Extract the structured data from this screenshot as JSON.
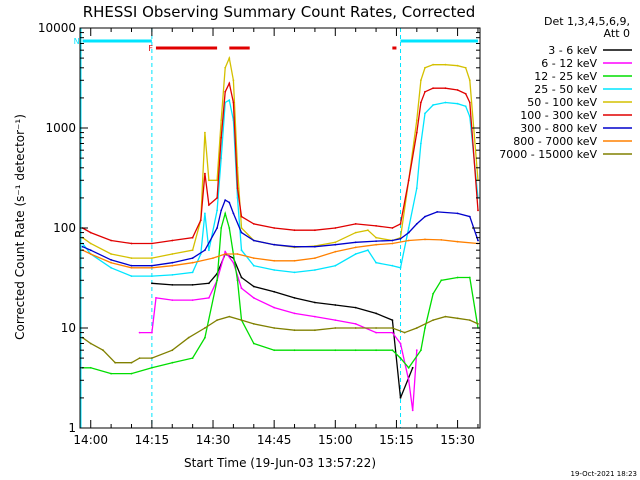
{
  "chart_data": {
    "type": "line",
    "title": "RHESSI Observing Summary Count Rates, Corrected",
    "xlabel": "Start Time (19-Jun-03 13:57:22)",
    "ylabel": "Corrected Count Rate (s⁻¹ detector⁻¹)",
    "yscale": "log",
    "ylim": [
      1,
      10000
    ],
    "xlim": [
      "13:57:22",
      "15:35:30"
    ],
    "x_ticks": [
      "14:00",
      "14:15",
      "14:30",
      "14:45",
      "15:00",
      "15:15",
      "15:30"
    ],
    "y_ticks": [
      "1",
      "10",
      "100",
      "1000",
      "10000"
    ],
    "legend_position": "right",
    "legend_header": [
      "Det 1,3,4,5,6,9,",
      "Att 0"
    ],
    "timestamp": "19-Oct-2021 18:23",
    "flags": [
      {
        "label": "N",
        "color": "#00e5ff",
        "ranges": [
          [
            "13:58",
            "14:15"
          ],
          [
            "15:16",
            "15:35"
          ]
        ]
      },
      {
        "label": "F",
        "color": "#e00000",
        "ranges": [
          [
            "14:16",
            "14:31"
          ],
          [
            "14:34",
            "14:39"
          ],
          [
            "15:14",
            "15:15"
          ]
        ]
      }
    ],
    "night_boundaries": [
      "14:15",
      "15:16"
    ],
    "series": [
      {
        "name": "3 - 6 keV",
        "color": "#000000",
        "points": [
          [
            "14:15",
            28
          ],
          [
            "14:20",
            27
          ],
          [
            "14:25",
            27
          ],
          [
            "14:29",
            28
          ],
          [
            "14:31",
            35
          ],
          [
            "14:33",
            55
          ],
          [
            "14:35",
            50
          ],
          [
            "14:37",
            32
          ],
          [
            "14:40",
            26
          ],
          [
            "14:45",
            23
          ],
          [
            "14:50",
            20
          ],
          [
            "14:55",
            18
          ],
          [
            "15:00",
            17
          ],
          [
            "15:05",
            16
          ],
          [
            "15:10",
            14
          ],
          [
            "15:14",
            12
          ],
          [
            "15:16",
            2
          ],
          [
            "15:19",
            4
          ]
        ]
      },
      {
        "name": "6 - 12 keV",
        "color": "#ff00ff",
        "points": [
          [
            "14:12",
            9
          ],
          [
            "14:15",
            9
          ],
          [
            "14:16",
            20
          ],
          [
            "14:20",
            19
          ],
          [
            "14:25",
            19
          ],
          [
            "14:29",
            20
          ],
          [
            "14:31",
            30
          ],
          [
            "14:33",
            58
          ],
          [
            "14:35",
            45
          ],
          [
            "14:37",
            25
          ],
          [
            "14:40",
            20
          ],
          [
            "14:45",
            16
          ],
          [
            "14:50",
            14
          ],
          [
            "14:55",
            13
          ],
          [
            "15:00",
            12
          ],
          [
            "15:05",
            11
          ],
          [
            "15:10",
            9
          ],
          [
            "15:14",
            9
          ],
          [
            "15:16",
            7
          ],
          [
            "15:18",
            3
          ],
          [
            "15:19",
            1.5
          ],
          [
            "15:20",
            6
          ]
        ]
      },
      {
        "name": "12 - 25 keV",
        "color": "#00dd00",
        "points": [
          [
            "13:58",
            4
          ],
          [
            "14:00",
            4
          ],
          [
            "14:05",
            3.5
          ],
          [
            "14:10",
            3.5
          ],
          [
            "14:15",
            4
          ],
          [
            "14:20",
            4.5
          ],
          [
            "14:25",
            5
          ],
          [
            "14:28",
            8
          ],
          [
            "14:31",
            30
          ],
          [
            "14:32",
            100
          ],
          [
            "14:33",
            140
          ],
          [
            "14:34",
            100
          ],
          [
            "14:36",
            30
          ],
          [
            "14:37",
            12
          ],
          [
            "14:40",
            7
          ],
          [
            "14:45",
            6
          ],
          [
            "14:50",
            6
          ],
          [
            "15:00",
            6
          ],
          [
            "15:05",
            6
          ],
          [
            "15:10",
            6
          ],
          [
            "15:14",
            6
          ],
          [
            "15:16",
            5
          ],
          [
            "15:18",
            4
          ],
          [
            "15:21",
            6
          ],
          [
            "15:22",
            10
          ],
          [
            "15:24",
            22
          ],
          [
            "15:26",
            30
          ],
          [
            "15:30",
            32
          ],
          [
            "15:33",
            32
          ],
          [
            "15:35",
            10
          ]
        ]
      },
      {
        "name": "25 - 50 keV",
        "color": "#00e5ff",
        "points": [
          [
            "13:58",
            70
          ],
          [
            "14:00",
            55
          ],
          [
            "14:05",
            40
          ],
          [
            "14:10",
            33
          ],
          [
            "14:15",
            33
          ],
          [
            "14:20",
            34
          ],
          [
            "14:25",
            36
          ],
          [
            "14:27",
            55
          ],
          [
            "14:28",
            140
          ],
          [
            "14:29",
            60
          ],
          [
            "14:31",
            150
          ],
          [
            "14:32",
            500
          ],
          [
            "14:33",
            1800
          ],
          [
            "14:34",
            1900
          ],
          [
            "14:35",
            1200
          ],
          [
            "14:36",
            200
          ],
          [
            "14:37",
            60
          ],
          [
            "14:40",
            42
          ],
          [
            "14:45",
            38
          ],
          [
            "14:50",
            36
          ],
          [
            "14:55",
            38
          ],
          [
            "15:00",
            42
          ],
          [
            "15:05",
            55
          ],
          [
            "15:08",
            60
          ],
          [
            "15:10",
            45
          ],
          [
            "15:14",
            42
          ],
          [
            "15:16",
            40
          ],
          [
            "15:18",
            100
          ],
          [
            "15:20",
            250
          ],
          [
            "15:21",
            700
          ],
          [
            "15:22",
            1400
          ],
          [
            "15:24",
            1700
          ],
          [
            "15:27",
            1800
          ],
          [
            "15:30",
            1750
          ],
          [
            "15:32",
            1650
          ],
          [
            "15:33",
            1300
          ],
          [
            "15:35",
            200
          ]
        ]
      },
      {
        "name": "50 - 100 keV",
        "color": "#d4c000",
        "points": [
          [
            "13:58",
            80
          ],
          [
            "14:00",
            70
          ],
          [
            "14:05",
            55
          ],
          [
            "14:10",
            50
          ],
          [
            "14:15",
            50
          ],
          [
            "14:20",
            55
          ],
          [
            "14:25",
            60
          ],
          [
            "14:27",
            120
          ],
          [
            "14:28",
            900
          ],
          [
            "14:29",
            300
          ],
          [
            "14:31",
            300
          ],
          [
            "14:32",
            1200
          ],
          [
            "14:33",
            4000
          ],
          [
            "14:34",
            5000
          ],
          [
            "14:35",
            3000
          ],
          [
            "14:36",
            400
          ],
          [
            "14:37",
            100
          ],
          [
            "14:40",
            75
          ],
          [
            "14:45",
            68
          ],
          [
            "14:50",
            64
          ],
          [
            "14:55",
            66
          ],
          [
            "15:00",
            72
          ],
          [
            "15:05",
            90
          ],
          [
            "15:08",
            95
          ],
          [
            "15:10",
            80
          ],
          [
            "15:14",
            75
          ],
          [
            "15:16",
            80
          ],
          [
            "15:18",
            300
          ],
          [
            "15:20",
            1200
          ],
          [
            "15:21",
            3000
          ],
          [
            "15:22",
            4000
          ],
          [
            "15:24",
            4300
          ],
          [
            "15:27",
            4300
          ],
          [
            "15:30",
            4200
          ],
          [
            "15:32",
            4000
          ],
          [
            "15:33",
            3000
          ],
          [
            "15:35",
            300
          ]
        ]
      },
      {
        "name": "100 - 300 keV",
        "color": "#e00000",
        "points": [
          [
            "13:58",
            100
          ],
          [
            "14:00",
            90
          ],
          [
            "14:05",
            75
          ],
          [
            "14:10",
            70
          ],
          [
            "14:15",
            70
          ],
          [
            "14:20",
            75
          ],
          [
            "14:25",
            80
          ],
          [
            "14:27",
            120
          ],
          [
            "14:28",
            350
          ],
          [
            "14:29",
            170
          ],
          [
            "14:31",
            200
          ],
          [
            "14:32",
            800
          ],
          [
            "14:33",
            2300
          ],
          [
            "14:34",
            2800
          ],
          [
            "14:35",
            1800
          ],
          [
            "14:36",
            250
          ],
          [
            "14:37",
            130
          ],
          [
            "14:40",
            110
          ],
          [
            "14:45",
            100
          ],
          [
            "14:50",
            95
          ],
          [
            "14:55",
            95
          ],
          [
            "15:00",
            100
          ],
          [
            "15:05",
            110
          ],
          [
            "15:10",
            105
          ],
          [
            "15:14",
            100
          ],
          [
            "15:16",
            110
          ],
          [
            "15:18",
            300
          ],
          [
            "15:20",
            900
          ],
          [
            "15:21",
            1800
          ],
          [
            "15:22",
            2300
          ],
          [
            "15:24",
            2500
          ],
          [
            "15:27",
            2500
          ],
          [
            "15:30",
            2400
          ],
          [
            "15:32",
            2200
          ],
          [
            "15:33",
            1800
          ],
          [
            "15:35",
            150
          ]
        ]
      },
      {
        "name": "300 - 800 keV",
        "color": "#0000cc",
        "points": [
          [
            "13:58",
            65
          ],
          [
            "14:00",
            60
          ],
          [
            "14:05",
            48
          ],
          [
            "14:10",
            42
          ],
          [
            "14:15",
            42
          ],
          [
            "14:20",
            45
          ],
          [
            "14:25",
            50
          ],
          [
            "14:28",
            60
          ],
          [
            "14:31",
            100
          ],
          [
            "14:32",
            150
          ],
          [
            "14:33",
            190
          ],
          [
            "14:34",
            180
          ],
          [
            "14:35",
            140
          ],
          [
            "14:37",
            90
          ],
          [
            "14:40",
            75
          ],
          [
            "14:45",
            68
          ],
          [
            "14:50",
            65
          ],
          [
            "14:55",
            65
          ],
          [
            "15:00",
            68
          ],
          [
            "15:05",
            72
          ],
          [
            "15:10",
            74
          ],
          [
            "15:14",
            75
          ],
          [
            "15:16",
            78
          ],
          [
            "15:18",
            90
          ],
          [
            "15:20",
            110
          ],
          [
            "15:22",
            130
          ],
          [
            "15:25",
            145
          ],
          [
            "15:30",
            140
          ],
          [
            "15:33",
            130
          ],
          [
            "15:35",
            75
          ]
        ]
      },
      {
        "name": "800 - 7000 keV",
        "color": "#ff8000",
        "points": [
          [
            "13:58",
            60
          ],
          [
            "14:00",
            55
          ],
          [
            "14:05",
            45
          ],
          [
            "14:10",
            40
          ],
          [
            "14:15",
            40
          ],
          [
            "14:20",
            42
          ],
          [
            "14:25",
            45
          ],
          [
            "14:30",
            50
          ],
          [
            "14:33",
            55
          ],
          [
            "14:36",
            55
          ],
          [
            "14:40",
            50
          ],
          [
            "14:45",
            47
          ],
          [
            "14:50",
            47
          ],
          [
            "14:55",
            50
          ],
          [
            "15:00",
            58
          ],
          [
            "15:05",
            64
          ],
          [
            "15:10",
            68
          ],
          [
            "15:14",
            70
          ],
          [
            "15:18",
            75
          ],
          [
            "15:22",
            77
          ],
          [
            "15:26",
            76
          ],
          [
            "15:30",
            73
          ],
          [
            "15:35",
            70
          ]
        ]
      },
      {
        "name": "7000 - 15000 keV",
        "color": "#808000",
        "points": [
          [
            "13:58",
            8
          ],
          [
            "14:00",
            7
          ],
          [
            "14:03",
            6
          ],
          [
            "14:06",
            4.5
          ],
          [
            "14:10",
            4.5
          ],
          [
            "14:12",
            5
          ],
          [
            "14:15",
            5
          ],
          [
            "14:20",
            6
          ],
          [
            "14:24",
            8
          ],
          [
            "14:28",
            10
          ],
          [
            "14:31",
            12
          ],
          [
            "14:34",
            13
          ],
          [
            "14:37",
            12
          ],
          [
            "14:40",
            11
          ],
          [
            "14:45",
            10
          ],
          [
            "14:50",
            9.5
          ],
          [
            "14:55",
            9.5
          ],
          [
            "15:00",
            10
          ],
          [
            "15:05",
            10
          ],
          [
            "15:10",
            10
          ],
          [
            "15:14",
            10
          ],
          [
            "15:17",
            9
          ],
          [
            "15:20",
            10
          ],
          [
            "15:24",
            12
          ],
          [
            "15:27",
            13
          ],
          [
            "15:30",
            12.5
          ],
          [
            "15:33",
            12
          ],
          [
            "15:35",
            11
          ]
        ]
      }
    ]
  }
}
